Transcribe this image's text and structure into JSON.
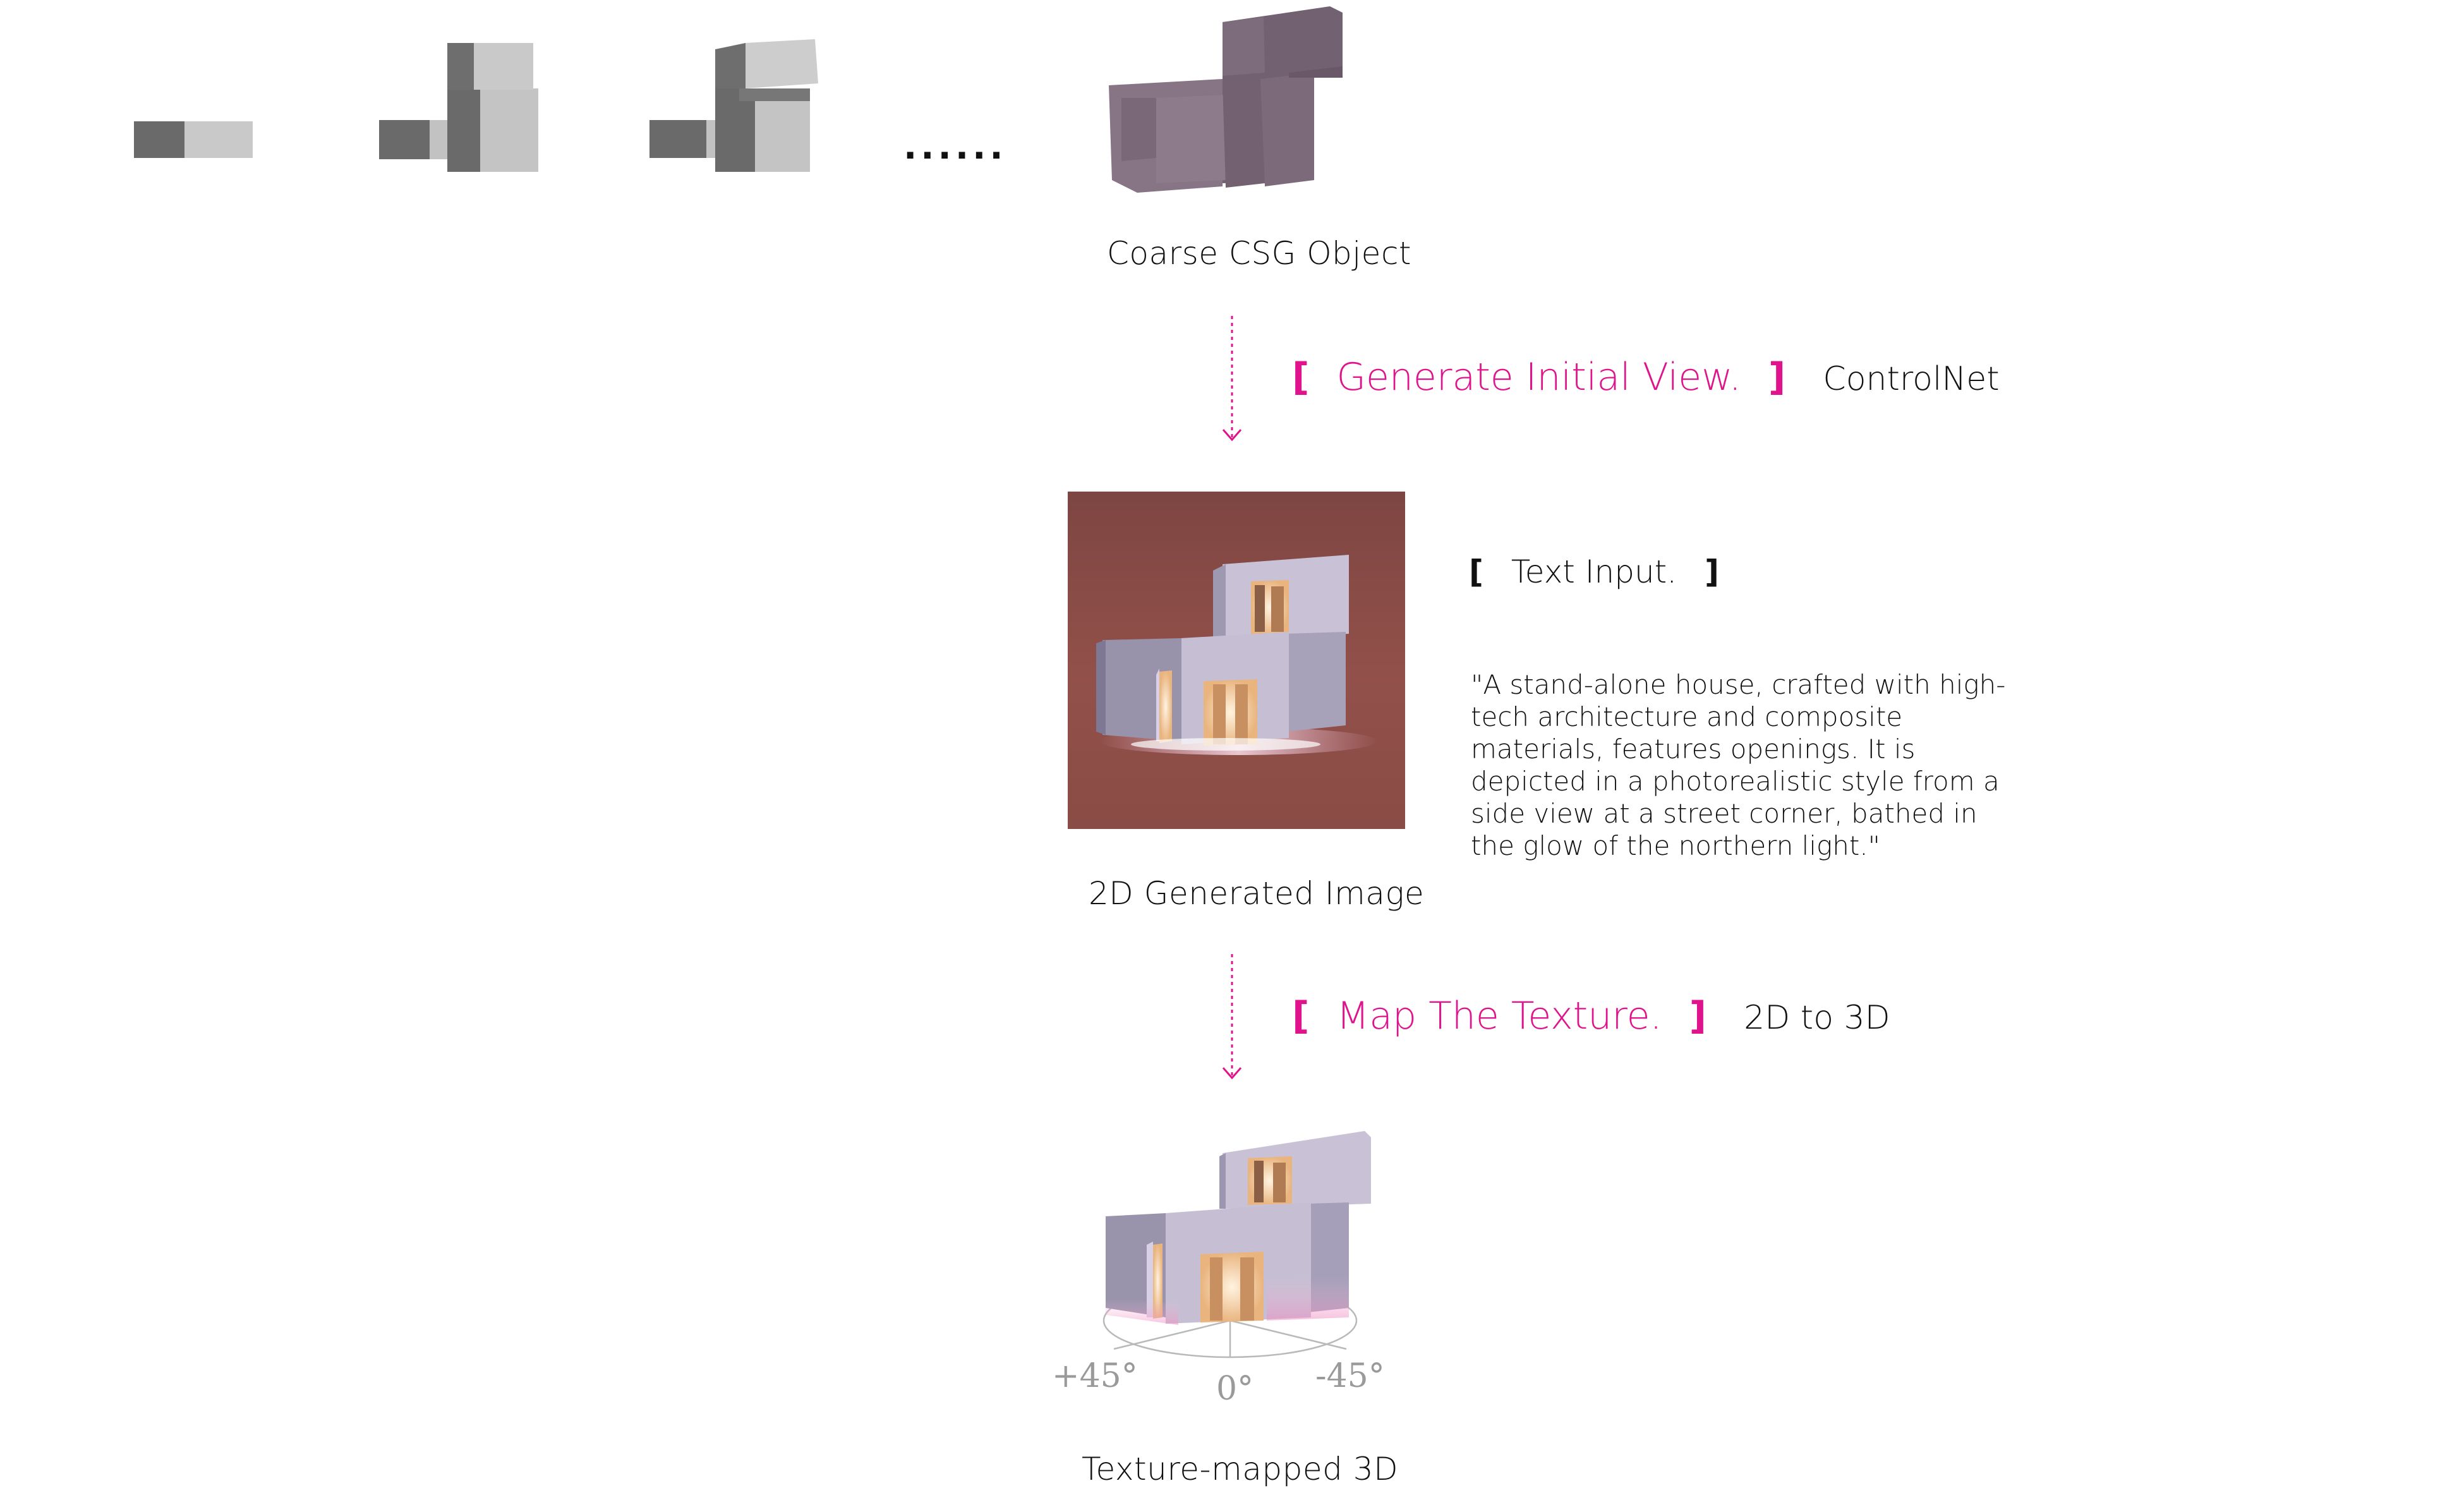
{
  "top": {
    "ellipsis": "......",
    "coarse_caption": "Coarse CSG Object"
  },
  "step1": {
    "bracket_open": "[",
    "label": "Generate Initial View.",
    "bracket_close": "]",
    "tool": "ControlNet"
  },
  "text_input": {
    "bracket_open": "[",
    "label": "Text Input.",
    "bracket_close": "]",
    "prompt": "\"A stand-alone house, crafted with high-tech architecture and composite materials, features openings. It is depicted in a photorealistic style from a side view at a street corner, bathed in the glow of the northern light.\""
  },
  "generated": {
    "caption": "2D Generated Image"
  },
  "step2": {
    "bracket_open": "[",
    "label": "Map The Texture.",
    "bracket_close": "]",
    "tool": "2D to 3D"
  },
  "textured": {
    "caption": "Texture-mapped 3D",
    "angle_left": "+45°",
    "angle_center": "0°",
    "angle_right": "-45°"
  },
  "colors": {
    "accent": "#e0138c",
    "block_dark": "#6b6b6b",
    "block_light": "#c4c4c4",
    "csg_purple": "#7b6a7c",
    "image_bg": "#8c4a44"
  }
}
